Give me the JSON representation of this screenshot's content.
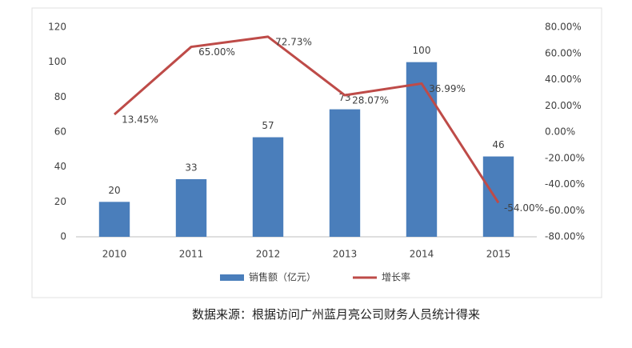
{
  "chart_data": {
    "type": "bar",
    "categories": [
      "2010",
      "2011",
      "2012",
      "2013",
      "2014",
      "2015"
    ],
    "series": [
      {
        "name": "销售额（亿元）",
        "type": "bar",
        "color": "#4a7ebb",
        "values": [
          20,
          33,
          57,
          73,
          100,
          46
        ]
      },
      {
        "name": "增长率",
        "type": "line",
        "axis": "y2",
        "color": "#be4b48",
        "values": [
          13.45,
          65.0,
          72.73,
          28.07,
          36.99,
          -54.0
        ],
        "value_labels": [
          "13.45%",
          "65.00%",
          "72.73%",
          "28.07%",
          "36.99%",
          "-54.00%"
        ]
      }
    ],
    "ylim": [
      0,
      120
    ],
    "yticks": [
      0,
      20,
      40,
      60,
      80,
      100,
      120
    ],
    "y2lim": [
      -80,
      80
    ],
    "y2ticks": [
      {
        "value": -80,
        "label": "-80.00%"
      },
      {
        "value": -60,
        "label": "-60.00%"
      },
      {
        "value": -40,
        "label": "-40.00%"
      },
      {
        "value": -20,
        "label": "-20.00%"
      },
      {
        "value": 0,
        "label": "0.00%"
      },
      {
        "value": 20,
        "label": "20.00%"
      },
      {
        "value": 40,
        "label": "40.00%"
      },
      {
        "value": 60,
        "label": "60.00%"
      },
      {
        "value": 80,
        "label": "80.00%"
      }
    ],
    "grid": false,
    "legend": "bottom",
    "caption": "数据来源：根据访问广州蓝月亮公司财务人员统计得来"
  }
}
